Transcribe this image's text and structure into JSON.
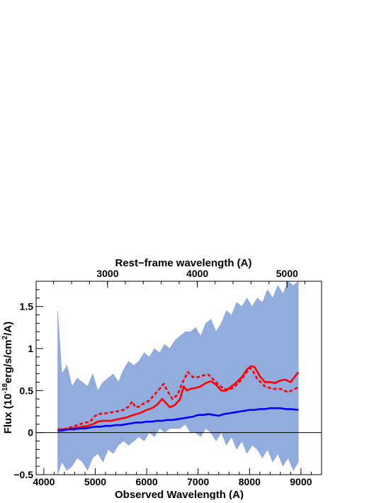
{
  "chart_data": {
    "type": "line",
    "title": "",
    "xlabel": "Observed Wavelength (A)",
    "ylabel": "Flux (10^-18 erg/s/cm^2/A)",
    "ylabel_parts": {
      "pre": "Flux (10",
      "exp1": "-18",
      "mid": "erg/s/cm",
      "exp2": "2",
      "post": "/A)"
    },
    "top_axis_label": "Rest−frame wavelength (A)",
    "xlim": [
      3850,
      9400
    ],
    "ylim": [
      -0.5,
      1.8
    ],
    "x_ticks": [
      "4000",
      "5000",
      "6000",
      "7000",
      "8000",
      "9000"
    ],
    "x_tick_values": [
      4000,
      5000,
      6000,
      7000,
      8000,
      9000
    ],
    "y_ticks": [
      "−0.5",
      "0",
      "0.5",
      "1",
      "1.5"
    ],
    "y_tick_values": [
      -0.5,
      0,
      0.5,
      1,
      1.5
    ],
    "top_ticks": [
      "3000",
      "4000",
      "5000"
    ],
    "top_tick_obs_values": [
      5240,
      6985,
      8730
    ],
    "zero_line": true,
    "colors": {
      "observed": "#7f9ed8",
      "model_solid": "#ff0000",
      "model_dashed": "#ff0000",
      "noise": "#0000ff",
      "axis": "#000000"
    },
    "series": [
      {
        "style": "solid",
        "color": "#ff0000",
        "x": [
          4270,
          4350,
          4450,
          4550,
          4650,
          4750,
          4850,
          4950,
          5050,
          5150,
          5300,
          5450,
          5600,
          5700,
          5800,
          5900,
          6000,
          6100,
          6200,
          6300,
          6380,
          6450,
          6550,
          6650,
          6720,
          6780,
          6850,
          6950,
          7050,
          7150,
          7250,
          7350,
          7450,
          7550,
          7650,
          7750,
          7850,
          7950,
          8030,
          8100,
          8200,
          8300,
          8400,
          8500,
          8600,
          8700,
          8800,
          8950
        ],
        "y": [
          0.04,
          0.04,
          0.04,
          0.05,
          0.06,
          0.07,
          0.08,
          0.1,
          0.13,
          0.14,
          0.14,
          0.16,
          0.18,
          0.2,
          0.22,
          0.24,
          0.27,
          0.29,
          0.33,
          0.4,
          0.35,
          0.3,
          0.33,
          0.4,
          0.55,
          0.5,
          0.52,
          0.53,
          0.55,
          0.59,
          0.61,
          0.57,
          0.5,
          0.5,
          0.55,
          0.6,
          0.66,
          0.75,
          0.79,
          0.78,
          0.67,
          0.6,
          0.6,
          0.59,
          0.62,
          0.63,
          0.6,
          0.72
        ]
      },
      {
        "style": "dashed",
        "color": "#ff0000",
        "x": [
          4270,
          4450,
          4600,
          4750,
          4900,
          4980,
          5050,
          5200,
          5400,
          5550,
          5650,
          5720,
          5780,
          5850,
          5950,
          6050,
          6150,
          6250,
          6330,
          6400,
          6500,
          6600,
          6700,
          6800,
          6900,
          7000,
          7100,
          7200,
          7300,
          7400,
          7500,
          7600,
          7700,
          7800,
          7900,
          8000,
          8060,
          8150,
          8300,
          8450,
          8600,
          8750,
          8950
        ],
        "y": [
          0.03,
          0.05,
          0.08,
          0.11,
          0.13,
          0.19,
          0.22,
          0.23,
          0.25,
          0.27,
          0.31,
          0.37,
          0.3,
          0.31,
          0.35,
          0.38,
          0.45,
          0.52,
          0.58,
          0.5,
          0.4,
          0.45,
          0.6,
          0.72,
          0.66,
          0.66,
          0.68,
          0.69,
          0.63,
          0.57,
          0.52,
          0.51,
          0.54,
          0.6,
          0.68,
          0.77,
          0.74,
          0.64,
          0.55,
          0.52,
          0.52,
          0.48,
          0.54
        ]
      },
      {
        "style": "solid",
        "color": "#0000ff",
        "x": [
          4270,
          4400,
          4500,
          4600,
          4700,
          4800,
          4900,
          5000,
          5100,
          5200,
          5300,
          5400,
          5500,
          5600,
          5700,
          5800,
          5900,
          6000,
          6100,
          6200,
          6300,
          6400,
          6500,
          6600,
          6700,
          6800,
          6900,
          7000,
          7100,
          7200,
          7300,
          7400,
          7500,
          7600,
          7700,
          7800,
          7900,
          8000,
          8100,
          8200,
          8300,
          8400,
          8500,
          8600,
          8700,
          8800,
          8950
        ],
        "y": [
          0.02,
          0.03,
          0.04,
          0.04,
          0.05,
          0.05,
          0.06,
          0.07,
          0.07,
          0.08,
          0.08,
          0.09,
          0.09,
          0.1,
          0.11,
          0.12,
          0.12,
          0.13,
          0.13,
          0.14,
          0.14,
          0.15,
          0.15,
          0.16,
          0.17,
          0.18,
          0.19,
          0.21,
          0.21,
          0.22,
          0.21,
          0.2,
          0.22,
          0.23,
          0.24,
          0.25,
          0.26,
          0.27,
          0.27,
          0.28,
          0.28,
          0.29,
          0.29,
          0.29,
          0.28,
          0.28,
          0.27
        ]
      }
    ],
    "observed_band": {
      "color": "#7f9ed8",
      "x": [
        4270,
        4350,
        4450,
        4550,
        4650,
        4750,
        4850,
        4950,
        5050,
        5150,
        5250,
        5350,
        5450,
        5550,
        5650,
        5750,
        5850,
        5950,
        6050,
        6150,
        6250,
        6350,
        6450,
        6550,
        6650,
        6750,
        6850,
        6950,
        7050,
        7150,
        7250,
        7350,
        7450,
        7550,
        7650,
        7750,
        7850,
        7950,
        8050,
        8150,
        8250,
        8350,
        8450,
        8550,
        8650,
        8750,
        8850,
        8950
      ],
      "upper": [
        1.45,
        0.7,
        0.8,
        0.55,
        0.65,
        0.6,
        0.55,
        0.7,
        0.5,
        0.6,
        0.65,
        0.7,
        0.6,
        0.75,
        0.85,
        0.8,
        0.85,
        0.95,
        0.9,
        1.0,
        0.95,
        1.05,
        1.0,
        1.1,
        1.15,
        1.2,
        1.2,
        1.25,
        1.15,
        1.3,
        1.35,
        1.2,
        1.3,
        1.45,
        1.4,
        1.55,
        1.5,
        1.6,
        1.5,
        1.6,
        1.55,
        1.7,
        1.6,
        1.75,
        1.65,
        1.8,
        1.75,
        1.8
      ],
      "lower": [
        -0.5,
        -0.35,
        -0.45,
        -0.4,
        -0.3,
        -0.35,
        -0.45,
        -0.3,
        -0.25,
        -0.35,
        -0.2,
        -0.25,
        -0.15,
        -0.1,
        -0.15,
        -0.1,
        -0.05,
        -0.1,
        0.0,
        -0.05,
        0.05,
        0.0,
        0.05,
        0.05,
        0.05,
        0.1,
        0.0,
        0.0,
        -0.05,
        0.05,
        0.0,
        -0.1,
        0.0,
        -0.15,
        -0.05,
        -0.2,
        -0.1,
        -0.25,
        -0.15,
        -0.2,
        -0.3,
        -0.2,
        -0.35,
        -0.25,
        -0.4,
        -0.3,
        -0.45,
        -0.35
      ]
    }
  }
}
